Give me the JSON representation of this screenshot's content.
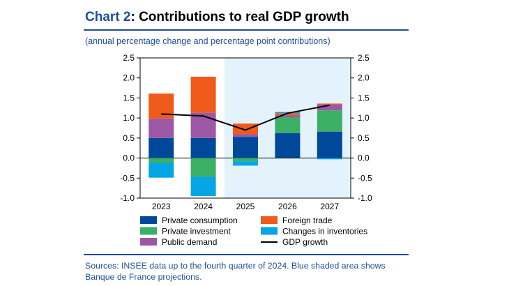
{
  "header": {
    "chart_number": "Chart 2",
    "title_text": ": Contributions to real GDP growth",
    "subtitle": "(annual percentage change and percentage point contributions)"
  },
  "footer": {
    "sources": "Sources: INSEE data up to the fourth quarter of 2024. Blue shaded area shows Banque de France projections."
  },
  "colors": {
    "private_consumption": "#00489a",
    "private_investment": "#3bb065",
    "public_demand": "#9c57a5",
    "foreign_trade": "#f05a1a",
    "changes_in_inventories": "#04a6e5",
    "gdp_growth": "#000000",
    "projection_shade": "#e4f3fb",
    "accent": "#1f4e9a"
  },
  "chart_data": {
    "type": "bar",
    "stacked": true,
    "categories": [
      "2023",
      "2024",
      "2025",
      "2026",
      "2027"
    ],
    "projection_categories": [
      "2025",
      "2026",
      "2027"
    ],
    "ylim": [
      -1.0,
      2.5
    ],
    "yticks": [
      "2.5",
      "2.0",
      "1.5",
      "1.0",
      "0.5",
      "0.0",
      "-0.5",
      "-1.0"
    ],
    "ytick_values": [
      2.5,
      2.0,
      1.5,
      1.0,
      0.5,
      0.0,
      -0.5,
      -1.0
    ],
    "series": [
      {
        "key": "private_consumption",
        "name": "Private consumption",
        "values": [
          0.5,
          0.5,
          0.53,
          0.62,
          0.66
        ]
      },
      {
        "key": "private_investment",
        "name": "Private investment",
        "values": [
          -0.12,
          -0.47,
          -0.08,
          0.4,
          0.53
        ]
      },
      {
        "key": "public_demand",
        "name": "Public demand",
        "values": [
          0.49,
          0.63,
          0.07,
          0.05,
          0.15
        ]
      },
      {
        "key": "foreign_trade",
        "name": "Foreign trade",
        "values": [
          0.62,
          0.9,
          0.26,
          0.05,
          0.02
        ]
      },
      {
        "key": "changes_in_inventories",
        "name": "Changes in inventories",
        "values": [
          -0.37,
          -0.48,
          -0.11,
          0.03,
          -0.03
        ]
      }
    ],
    "line": {
      "name": "GDP growth",
      "values": [
        1.1,
        1.05,
        0.7,
        1.12,
        1.32
      ]
    },
    "legend": [
      {
        "key": "private_consumption",
        "label": "Private consumption",
        "kind": "box"
      },
      {
        "key": "foreign_trade",
        "label": "Foreign trade",
        "kind": "box"
      },
      {
        "key": "private_investment",
        "label": "Private investment",
        "kind": "box"
      },
      {
        "key": "changes_in_inventories",
        "label": "Changes in inventories",
        "kind": "box"
      },
      {
        "key": "public_demand",
        "label": "Public demand",
        "kind": "box"
      },
      {
        "key": "gdp_growth",
        "label": "GDP growth",
        "kind": "line"
      }
    ],
    "legend_position": "bottom"
  }
}
